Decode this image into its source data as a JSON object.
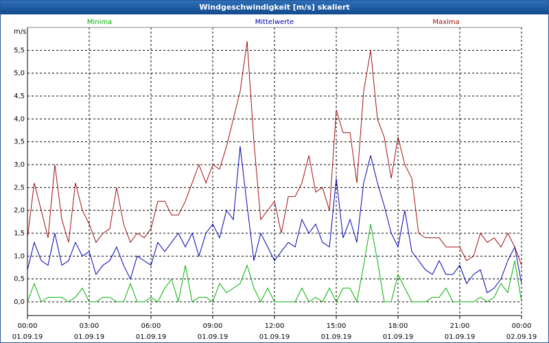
{
  "chart_data": {
    "type": "line",
    "title": "Windgeschwindigkeit [m/s] skaliert",
    "y_label": "m/s",
    "x": [
      0,
      0.33,
      0.67,
      1,
      1.33,
      1.67,
      2,
      2.33,
      2.67,
      3,
      3.33,
      3.67,
      4,
      4.33,
      4.67,
      5,
      5.33,
      5.67,
      6,
      6.33,
      6.67,
      7,
      7.33,
      7.67,
      8,
      8.33,
      8.67,
      9,
      9.33,
      9.67,
      10,
      10.33,
      10.67,
      11,
      11.33,
      11.67,
      12,
      12.33,
      12.67,
      13,
      13.33,
      13.67,
      14,
      14.33,
      14.67,
      15,
      15.33,
      15.67,
      16,
      16.33,
      16.67,
      17,
      17.33,
      17.67,
      18,
      18.33,
      18.67,
      19,
      19.33,
      19.67,
      20,
      20.33,
      20.67,
      21,
      21.33,
      21.67,
      22,
      22.33,
      22.67,
      23,
      23.33,
      23.67,
      24
    ],
    "series": [
      {
        "name": "Minima",
        "color": "#00b000",
        "values": [
          0.0,
          0.4,
          0.0,
          0.1,
          0.1,
          0.1,
          0.0,
          0.1,
          0.3,
          0.0,
          0.0,
          0.1,
          0.1,
          0.0,
          0.0,
          0.4,
          0.0,
          0.0,
          0.1,
          0.0,
          0.3,
          0.5,
          0.0,
          0.8,
          0.0,
          0.1,
          0.1,
          0.0,
          0.4,
          0.2,
          0.3,
          0.4,
          0.8,
          0.3,
          0.0,
          0.3,
          0.0,
          0.0,
          0.0,
          0.0,
          0.3,
          0.0,
          0.1,
          0.0,
          0.3,
          0.0,
          0.3,
          0.3,
          0.0,
          0.8,
          1.7,
          0.9,
          0.0,
          0.0,
          0.6,
          0.3,
          0.0,
          0.0,
          0.0,
          0.1,
          0.1,
          0.3,
          0.0,
          0.0,
          0.0,
          0.0,
          0.1,
          0.0,
          0.1,
          0.4,
          0.2,
          0.9,
          0.0
        ]
      },
      {
        "name": "Mittelwerte",
        "color": "#0000b0",
        "values": [
          0.7,
          1.3,
          0.9,
          0.8,
          1.5,
          0.8,
          0.9,
          1.3,
          1.0,
          1.1,
          0.6,
          0.8,
          0.9,
          1.2,
          0.8,
          0.5,
          1.0,
          0.9,
          0.8,
          1.3,
          1.1,
          1.3,
          1.5,
          1.2,
          1.5,
          1.0,
          1.5,
          1.7,
          1.4,
          2.0,
          1.8,
          3.4,
          2.1,
          0.9,
          1.5,
          1.2,
          0.9,
          1.1,
          1.3,
          1.2,
          1.8,
          1.5,
          1.7,
          1.3,
          1.2,
          2.7,
          1.4,
          1.8,
          1.3,
          2.6,
          3.2,
          2.6,
          2.1,
          1.5,
          1.2,
          2.0,
          1.1,
          0.9,
          0.7,
          0.6,
          0.9,
          0.6,
          0.6,
          0.8,
          0.4,
          0.6,
          0.7,
          0.2,
          0.3,
          0.5,
          0.9,
          1.2,
          0.4
        ]
      },
      {
        "name": "Maxima",
        "color": "#a01010",
        "values": [
          1.4,
          2.6,
          2.0,
          1.4,
          3.0,
          1.8,
          1.3,
          2.6,
          2.0,
          1.7,
          1.3,
          1.5,
          1.6,
          2.5,
          1.7,
          1.3,
          1.5,
          1.4,
          1.6,
          2.2,
          2.2,
          1.9,
          1.9,
          2.2,
          2.6,
          3.0,
          2.6,
          3.0,
          2.9,
          3.4,
          4.0,
          4.6,
          5.7,
          3.5,
          1.8,
          2.0,
          2.2,
          1.5,
          2.3,
          2.3,
          2.6,
          3.2,
          2.4,
          2.5,
          2.0,
          4.2,
          3.7,
          3.7,
          2.6,
          4.6,
          5.5,
          4.0,
          3.6,
          2.7,
          3.6,
          3.0,
          2.7,
          1.5,
          1.4,
          1.4,
          1.4,
          1.2,
          1.2,
          1.2,
          0.9,
          1.0,
          1.5,
          1.3,
          1.4,
          1.2,
          1.5,
          1.2,
          0.8
        ]
      }
    ],
    "xlim": [
      0,
      24
    ],
    "xticks": [
      {
        "value": 0,
        "label": "00:00"
      },
      {
        "value": 3,
        "label": "03:00"
      },
      {
        "value": 6,
        "label": "06:00"
      },
      {
        "value": 9,
        "label": "09:00"
      },
      {
        "value": 12,
        "label": "12:00"
      },
      {
        "value": 15,
        "label": "15:00"
      },
      {
        "value": 18,
        "label": "18:00"
      },
      {
        "value": 21,
        "label": "21:00"
      },
      {
        "value": 24,
        "label": "00:00"
      }
    ],
    "xtick_dates": [
      "01.09.19",
      "01.09.19",
      "01.09.19",
      "01.09.19",
      "01.09.19",
      "01.09.19",
      "01.09.19",
      "01.09.19",
      "02.09.19"
    ],
    "ylim": [
      -0.3,
      6.0
    ],
    "yticks": [
      {
        "value": 0,
        "label": "0,0"
      },
      {
        "value": 0.5,
        "label": "0,5"
      },
      {
        "value": 1,
        "label": "1,0"
      },
      {
        "value": 1.5,
        "label": "1,5"
      },
      {
        "value": 2,
        "label": "2,0"
      },
      {
        "value": 2.5,
        "label": "2,5"
      },
      {
        "value": 3,
        "label": "3,0"
      },
      {
        "value": 3.5,
        "label": "3,5"
      },
      {
        "value": 4,
        "label": "4,0"
      },
      {
        "value": 4.5,
        "label": "4,5"
      },
      {
        "value": 5,
        "label": "5,0"
      },
      {
        "value": 5.5,
        "label": "5,5"
      }
    ],
    "grid": true
  }
}
